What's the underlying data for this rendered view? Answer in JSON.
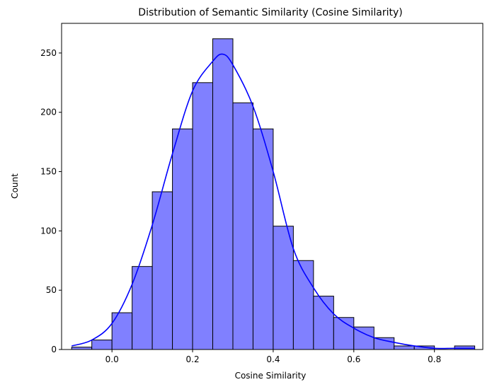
{
  "chart_data": {
    "type": "bar",
    "subtype": "histogram-with-kde",
    "title": "Distribution of Semantic Similarity (Cosine Similarity)",
    "xlabel": "Cosine Similarity",
    "ylabel": "Count",
    "xlim": [
      -0.125,
      0.92
    ],
    "ylim": [
      0,
      275
    ],
    "x_ticks": [
      0.0,
      0.2,
      0.4,
      0.6,
      0.8
    ],
    "x_tick_labels": [
      "0.0",
      "0.2",
      "0.4",
      "0.6",
      "0.8"
    ],
    "y_ticks": [
      0,
      50,
      100,
      150,
      200,
      250
    ],
    "y_tick_labels": [
      "0",
      "50",
      "100",
      "150",
      "200",
      "250"
    ],
    "grid": false,
    "bin_edges": [
      -0.1,
      -0.05,
      0.0,
      0.05,
      0.1,
      0.15,
      0.2,
      0.25,
      0.3,
      0.35,
      0.4,
      0.45,
      0.5,
      0.55,
      0.6,
      0.65,
      0.7,
      0.75,
      0.8,
      0.85,
      0.9
    ],
    "counts": [
      2,
      8,
      31,
      70,
      133,
      186,
      225,
      262,
      208,
      186,
      104,
      75,
      45,
      27,
      19,
      10,
      3,
      3,
      0,
      3
    ],
    "bar_color": "#8080ff",
    "bar_edge_color": "#000000",
    "kde": {
      "color": "#0000ff",
      "x": [
        -0.1,
        -0.05,
        0.0,
        0.05,
        0.1,
        0.15,
        0.2,
        0.25,
        0.275,
        0.3,
        0.35,
        0.4,
        0.45,
        0.5,
        0.55,
        0.6,
        0.65,
        0.7,
        0.75,
        0.8,
        0.85,
        0.9
      ],
      "y": [
        3,
        8,
        22,
        55,
        105,
        165,
        218,
        243,
        249,
        240,
        205,
        150,
        85,
        52,
        30,
        18,
        10,
        6,
        3,
        1,
        1,
        1
      ]
    }
  }
}
